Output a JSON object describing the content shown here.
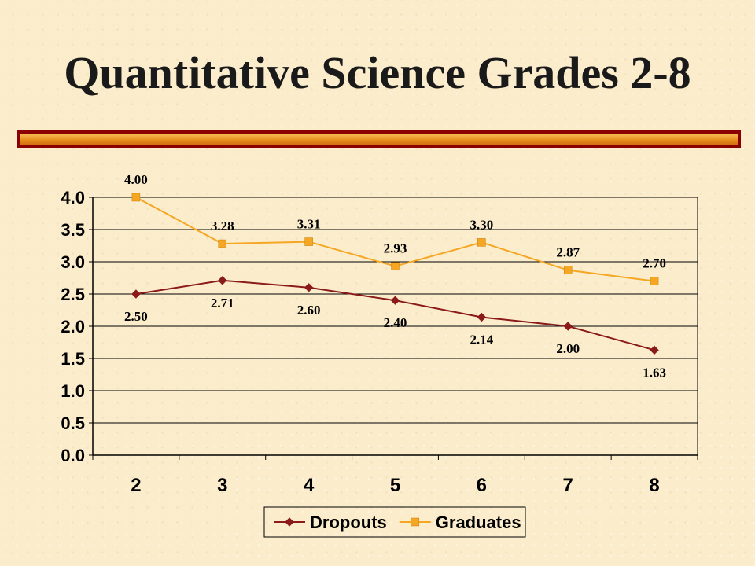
{
  "slide": {
    "title": "Quantitative Science Grades 2-8"
  },
  "chart_data": {
    "type": "line",
    "title": "",
    "xlabel": "",
    "ylabel": "",
    "categories": [
      "2",
      "3",
      "4",
      "5",
      "6",
      "7",
      "8"
    ],
    "ylim": [
      0,
      4.0
    ],
    "yticks": [
      "0.0",
      "0.5",
      "1.0",
      "1.5",
      "2.0",
      "2.5",
      "3.0",
      "3.5",
      "4.0"
    ],
    "grid": true,
    "legend_position": "bottom",
    "series": [
      {
        "name": "Dropouts",
        "color": "#8b1a1a",
        "marker": "diamond",
        "values": [
          2.5,
          2.71,
          2.6,
          2.4,
          2.14,
          2.0,
          1.63
        ],
        "labels": [
          "2.50",
          "2.71",
          "2.60",
          "2.40",
          "2.14",
          "2.00",
          "1.63"
        ]
      },
      {
        "name": "Graduates",
        "color": "#f5a623",
        "marker": "square",
        "values": [
          4.0,
          3.28,
          3.31,
          2.93,
          3.3,
          2.87,
          2.7
        ],
        "labels": [
          "4.00",
          "3.28",
          "3.31",
          "2.93",
          "3.30",
          "2.87",
          "2.70"
        ]
      }
    ]
  }
}
